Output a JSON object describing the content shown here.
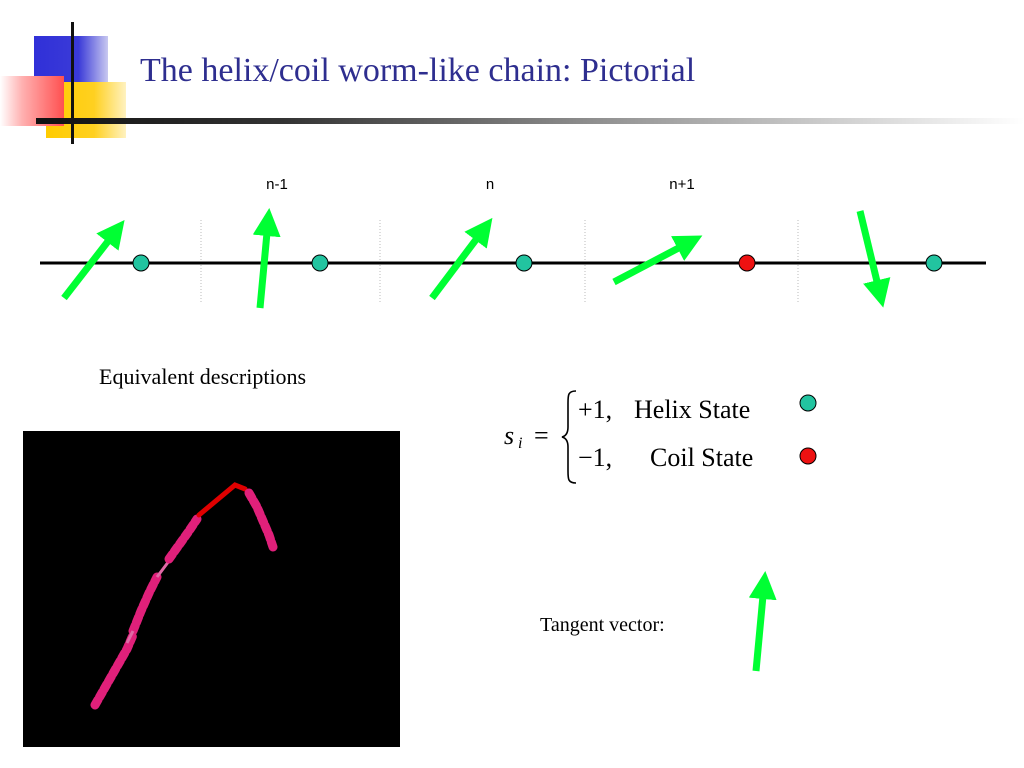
{
  "slide": {
    "title": "The helix/coil worm-like chain: Pictorial",
    "accent_colors": {
      "blue": "#3333cc",
      "yellow": "#ffcc00",
      "red": "#ff3333",
      "title": "#2e2e8f"
    }
  },
  "chain": {
    "labels": [
      "n-1",
      "n",
      "n+1"
    ],
    "states": [
      "helix",
      "helix",
      "helix",
      "coil",
      "helix"
    ],
    "state_colors": {
      "helix": "#22c4a0",
      "coil": "#ee1111"
    },
    "arrow_color": "#00ff33"
  },
  "equivalent_label": "Equivalent descriptions",
  "equation": {
    "lhs": "s",
    "subscript": "i",
    "equals": "=",
    "helix_value": "+1,",
    "helix_label": "Helix State",
    "coil_value": "−1,",
    "coil_label": "Coil State"
  },
  "tangent_label": "Tangent vector:"
}
